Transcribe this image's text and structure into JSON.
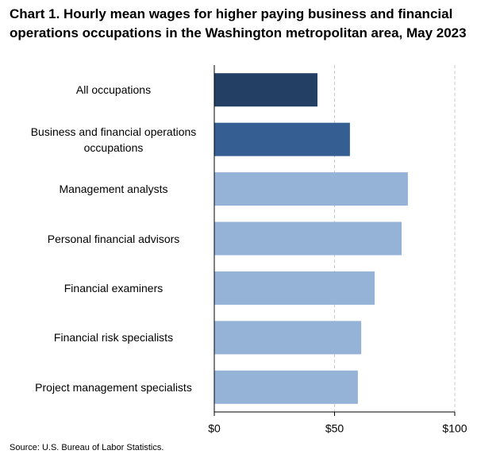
{
  "chart_data": {
    "type": "bar",
    "orientation": "horizontal",
    "title": "Chart 1. Hourly mean wages for higher paying business and financial operations occupations in the Washington metropolitan area, May 2023",
    "categories": [
      "All occupations",
      "Business and financial operations occupations",
      "Management analysts",
      "Personal financial advisors",
      "Financial examiners",
      "Financial risk specialists",
      "Project management specialists"
    ],
    "values": [
      42.9,
      56.4,
      80.5,
      77.9,
      66.7,
      61.1,
      59.7
    ],
    "colors": [
      "#233f63",
      "#355f93",
      "#95b3d7",
      "#95b3d7",
      "#95b3d7",
      "#95b3d7",
      "#95b3d7"
    ],
    "xlim": [
      0,
      100
    ],
    "xticks": [
      {
        "value": 0,
        "label": "$0"
      },
      {
        "value": 50,
        "label": "$50"
      },
      {
        "value": 100,
        "label": "$100"
      }
    ],
    "grid": true,
    "source": "Source: U.S. Bureau of Labor Statistics."
  }
}
